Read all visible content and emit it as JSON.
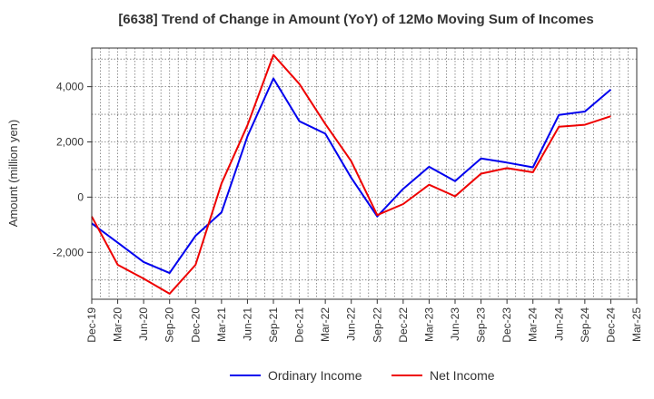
{
  "chart_data": {
    "type": "line",
    "title": "[6638]  Trend of Change in Amount (YoY) of 12Mo Moving Sum of Incomes",
    "ylabel": "Amount (million yen)",
    "xlabel": "",
    "categories": [
      "Dec-19",
      "Mar-20",
      "Jun-20",
      "Sep-20",
      "Dec-20",
      "Mar-21",
      "Jun-21",
      "Sep-21",
      "Dec-21",
      "Mar-22",
      "Jun-22",
      "Sep-22",
      "Dec-22",
      "Mar-23",
      "Jun-23",
      "Sep-23",
      "Dec-23",
      "Mar-24",
      "Jun-24",
      "Sep-24",
      "Dec-24",
      "Mar-25"
    ],
    "yticks": [
      -2000,
      0,
      2000,
      4000
    ],
    "ytick_labels": [
      "-2,000",
      "0",
      "2,000",
      "4,000"
    ],
    "ylim": [
      -3700,
      5400
    ],
    "grid": true,
    "legend_position": "bottom",
    "series": [
      {
        "name": "Ordinary Income",
        "color": "#0000ee",
        "values": [
          -950,
          -1650,
          -2350,
          -2750,
          -1400,
          -550,
          2200,
          4300,
          2750,
          2300,
          700,
          -700,
          300,
          1100,
          580,
          1400,
          1250,
          1080,
          2980,
          3100,
          3900,
          null
        ]
      },
      {
        "name": "Net Income",
        "color": "#ee0000",
        "values": [
          -700,
          -2450,
          -2950,
          -3500,
          -2450,
          500,
          2600,
          5150,
          4100,
          2650,
          1300,
          -650,
          -250,
          450,
          30,
          850,
          1050,
          900,
          2550,
          2620,
          2930,
          null
        ]
      }
    ]
  }
}
